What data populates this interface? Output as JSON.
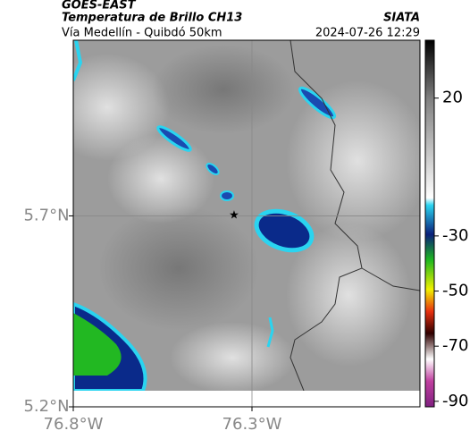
{
  "header": {
    "title": "GOES-EAST",
    "subtitle": "Temperatura de Brillo CH13",
    "route": "Vía Medellín - Quibdó 50km",
    "source": "SIATA",
    "datetime": "2024-07-26 12:29"
  },
  "map": {
    "xlim": [
      -76.8,
      -75.83
    ],
    "ylim": [
      5.2,
      6.16
    ],
    "xticks": [
      {
        "value": -76.8,
        "label": "76.8°W"
      },
      {
        "value": -76.3,
        "label": "76.3°W"
      }
    ],
    "yticks": [
      {
        "value": 5.7,
        "label": "5.7°N"
      },
      {
        "value": 5.2,
        "label": "5.2°N"
      }
    ],
    "grid": true
  },
  "colorbar": {
    "clim": [
      -92,
      41
    ],
    "ticks": [
      20,
      -30,
      -50,
      -70,
      -90
    ]
  }
}
